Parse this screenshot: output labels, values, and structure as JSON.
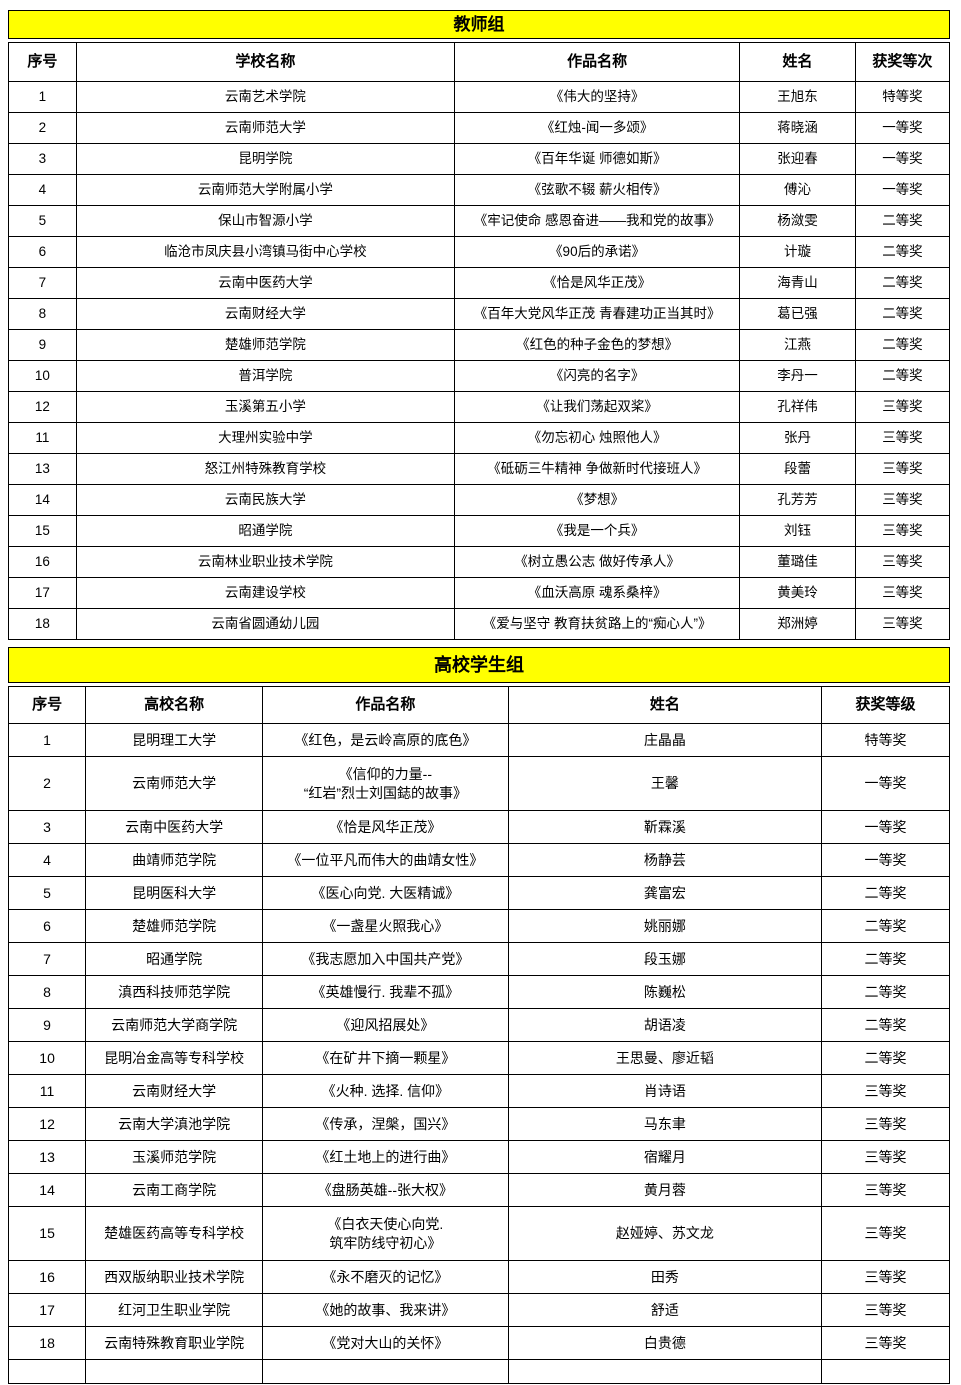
{
  "colors": {
    "band_background": "#ffff00",
    "border": "#000000",
    "text": "#000000",
    "page_background": "#ffffff"
  },
  "tables": [
    {
      "title": "教师组",
      "columns": [
        "序号",
        "学校名称",
        "作品名称",
        "姓名",
        "获奖等次"
      ],
      "col_widths_pct": [
        7.2,
        40.2,
        30.3,
        12.3,
        10.0
      ],
      "rows": [
        [
          "1",
          "云南艺术学院",
          "《伟大的坚持》",
          "王旭东",
          "特等奖"
        ],
        [
          "2",
          "云南师范大学",
          "《红烛-闻一多颂》",
          "蒋晓涵",
          "一等奖"
        ],
        [
          "3",
          "昆明学院",
          "《百年华诞 师德如斯》",
          "张迎春",
          "一等奖"
        ],
        [
          "4",
          "云南师范大学附属小学",
          "《弦歌不辍 薪火相传》",
          "傅沁",
          "一等奖"
        ],
        [
          "5",
          "保山市智源小学",
          "《牢记使命 感恩奋进——我和党的故事》",
          "杨潋雯",
          "二等奖"
        ],
        [
          "6",
          "临沧市凤庆县小湾镇马街中心学校",
          "《90后的承诺》",
          "计璇",
          "二等奖"
        ],
        [
          "7",
          "云南中医药大学",
          "《恰是风华正茂》",
          "海青山",
          "二等奖"
        ],
        [
          "8",
          "云南财经大学",
          "《百年大党风华正茂 青春建功正当其时》",
          "葛已强",
          "二等奖"
        ],
        [
          "9",
          "楚雄师范学院",
          "《红色的种子金色的梦想》",
          "江燕",
          "二等奖"
        ],
        [
          "10",
          "普洱学院",
          "《闪亮的名字》",
          "李丹一",
          "二等奖"
        ],
        [
          "12",
          "玉溪第五小学",
          "《让我们荡起双桨》",
          "孔祥伟",
          "三等奖"
        ],
        [
          "11",
          "大理州实验中学",
          "《勿忘初心 烛照他人》",
          "张丹",
          "三等奖"
        ],
        [
          "13",
          "怒江州特殊教育学校",
          "《砥砺三牛精神 争做新时代接班人》",
          "段蕾",
          "三等奖"
        ],
        [
          "14",
          "云南民族大学",
          "《梦想》",
          "孔芳芳",
          "三等奖"
        ],
        [
          "15",
          "昭通学院",
          "《我是一个兵》",
          "刘钰",
          "三等奖"
        ],
        [
          "16",
          "云南林业职业技术学院",
          "《树立愚公志 做好传承人》",
          "董璐佳",
          "三等奖"
        ],
        [
          "17",
          "云南建设学校",
          "《血沃高原 魂系桑梓》",
          "黄美玲",
          "三等奖"
        ],
        [
          "18",
          "云南省圆通幼儿园",
          "《爱与坚守 教育扶贫路上的“痴心人”》",
          "郑洲婷",
          "三等奖"
        ]
      ],
      "has_partial_next_row": false
    },
    {
      "title": "高校学生组",
      "columns": [
        "序号",
        "高校名称",
        "作品名称",
        "姓名",
        "获奖等级"
      ],
      "col_widths_pct": [
        8.2,
        18.8,
        26.1,
        33.3,
        13.6
      ],
      "rows": [
        [
          "1",
          "昆明理工大学",
          "《红色，是云岭高原的底色》",
          "庄晶晶",
          "特等奖"
        ],
        [
          "2",
          "云南师范大学",
          "《信仰的力量--\n“红岩”烈士刘国鋕的故事》",
          "王馨",
          "一等奖"
        ],
        [
          "3",
          "云南中医药大学",
          "《恰是风华正茂》",
          "靳霖溪",
          "一等奖"
        ],
        [
          "4",
          "曲靖师范学院",
          "《一位平凡而伟大的曲靖女性》",
          "杨静芸",
          "一等奖"
        ],
        [
          "5",
          "昆明医科大学",
          "《医心向党. 大医精诚》",
          "龚富宏",
          "二等奖"
        ],
        [
          "6",
          "楚雄师范学院",
          "《一盏星火照我心》",
          "姚丽娜",
          "二等奖"
        ],
        [
          "7",
          "昭通学院",
          "《我志愿加入中国共产党》",
          "段玉娜",
          "二等奖"
        ],
        [
          "8",
          "滇西科技师范学院",
          "《英雄慢行. 我辈不孤》",
          "陈巍松",
          "二等奖"
        ],
        [
          "9",
          "云南师范大学商学院",
          "《迎风招展处》",
          "胡语凌",
          "二等奖"
        ],
        [
          "10",
          "昆明冶金高等专科学校",
          "《在矿井下摘一颗星》",
          "王思曼、廖近韬",
          "二等奖"
        ],
        [
          "11",
          "云南财经大学",
          "《火种. 选择. 信仰》",
          "肖诗语",
          "三等奖"
        ],
        [
          "12",
          "云南大学滇池学院",
          "《传承，涅槃，国兴》",
          "马东聿",
          "三等奖"
        ],
        [
          "13",
          "玉溪师范学院",
          "《红土地上的进行曲》",
          "宿耀月",
          "三等奖"
        ],
        [
          "14",
          "云南工商学院",
          "《盘肠英雄--张大权》",
          "黄月蓉",
          "三等奖"
        ],
        [
          "15",
          "楚雄医药高等专科学校",
          "《白衣天使心向党.\n筑牢防线守初心》",
          "赵娅婷、苏文龙",
          "三等奖"
        ],
        [
          "16",
          "西双版纳职业技术学院",
          "《永不磨灭的记忆》",
          "田秀",
          "三等奖"
        ],
        [
          "17",
          "红河卫生职业学院",
          "《她的故事、我来讲》",
          "舒适",
          "三等奖"
        ],
        [
          "18",
          "云南特殊教育职业学院",
          "《党对大山的关怀》",
          "白贵德",
          "三等奖"
        ]
      ],
      "has_partial_next_row": true
    }
  ]
}
